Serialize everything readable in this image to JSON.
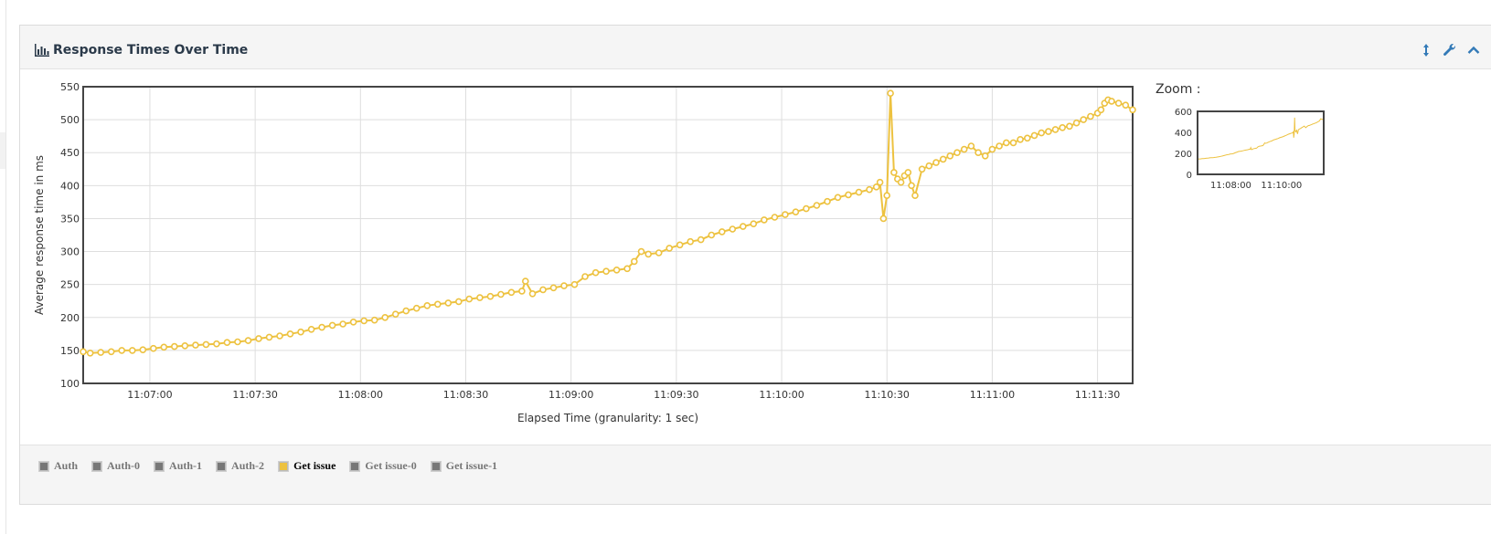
{
  "panel": {
    "title": "Response Times Over Time",
    "title_icon": "bar-chart-icon",
    "tools": [
      "resize-vertical-icon",
      "wrench-icon",
      "chevron-up-icon"
    ]
  },
  "zoom": {
    "label": "Zoom :"
  },
  "colors": {
    "series": "#edc240",
    "inactive": "#777777"
  },
  "chart_data": [
    {
      "type": "line",
      "title": "",
      "xlabel": "Elapsed Time (granularity: 1 sec)",
      "ylabel": "Average response time in ms",
      "ylim": [
        100,
        550
      ],
      "yticks": [
        100,
        150,
        200,
        250,
        300,
        350,
        400,
        450,
        500,
        550
      ],
      "xlim": [
        "11:06:41",
        "11:11:40"
      ],
      "xticks": [
        "11:07:00",
        "11:07:30",
        "11:08:00",
        "11:08:30",
        "11:09:00",
        "11:09:30",
        "11:10:00",
        "11:10:30",
        "11:11:00",
        "11:11:30"
      ],
      "grid": true,
      "markers": true,
      "series": [
        {
          "name": "Get issue",
          "x": [
            "11:06:41",
            "11:06:43",
            "11:06:46",
            "11:06:49",
            "11:06:52",
            "11:06:55",
            "11:06:58",
            "11:07:01",
            "11:07:04",
            "11:07:07",
            "11:07:10",
            "11:07:13",
            "11:07:16",
            "11:07:19",
            "11:07:22",
            "11:07:25",
            "11:07:28",
            "11:07:31",
            "11:07:34",
            "11:07:37",
            "11:07:40",
            "11:07:43",
            "11:07:46",
            "11:07:49",
            "11:07:52",
            "11:07:55",
            "11:07:58",
            "11:08:01",
            "11:08:04",
            "11:08:07",
            "11:08:10",
            "11:08:13",
            "11:08:16",
            "11:08:19",
            "11:08:22",
            "11:08:25",
            "11:08:28",
            "11:08:31",
            "11:08:34",
            "11:08:37",
            "11:08:40",
            "11:08:43",
            "11:08:46",
            "11:08:47",
            "11:08:49",
            "11:08:52",
            "11:08:55",
            "11:08:58",
            "11:09:01",
            "11:09:04",
            "11:09:07",
            "11:09:10",
            "11:09:13",
            "11:09:16",
            "11:09:18",
            "11:09:20",
            "11:09:22",
            "11:09:25",
            "11:09:28",
            "11:09:31",
            "11:09:34",
            "11:09:37",
            "11:09:40",
            "11:09:43",
            "11:09:46",
            "11:09:49",
            "11:09:52",
            "11:09:55",
            "11:09:58",
            "11:10:01",
            "11:10:04",
            "11:10:07",
            "11:10:10",
            "11:10:13",
            "11:10:16",
            "11:10:19",
            "11:10:22",
            "11:10:25",
            "11:10:27",
            "11:10:28",
            "11:10:29",
            "11:10:30",
            "11:10:31",
            "11:10:32",
            "11:10:33",
            "11:10:34",
            "11:10:35",
            "11:10:36",
            "11:10:37",
            "11:10:38",
            "11:10:40",
            "11:10:42",
            "11:10:44",
            "11:10:46",
            "11:10:48",
            "11:10:50",
            "11:10:52",
            "11:10:54",
            "11:10:56",
            "11:10:58",
            "11:11:00",
            "11:11:02",
            "11:11:04",
            "11:11:06",
            "11:11:08",
            "11:11:10",
            "11:11:12",
            "11:11:14",
            "11:11:16",
            "11:11:18",
            "11:11:20",
            "11:11:22",
            "11:11:24",
            "11:11:26",
            "11:11:28",
            "11:11:30",
            "11:11:31",
            "11:11:32",
            "11:11:33",
            "11:11:34",
            "11:11:36",
            "11:11:38",
            "11:11:40"
          ],
          "y": [
            148,
            146,
            147,
            148,
            150,
            150,
            151,
            153,
            155,
            156,
            157,
            158,
            159,
            160,
            162,
            163,
            165,
            168,
            170,
            172,
            175,
            178,
            182,
            185,
            188,
            190,
            193,
            195,
            196,
            200,
            205,
            210,
            214,
            218,
            220,
            222,
            224,
            228,
            230,
            232,
            235,
            238,
            240,
            255,
            236,
            242,
            245,
            248,
            250,
            262,
            268,
            270,
            272,
            274,
            285,
            300,
            296,
            298,
            305,
            310,
            315,
            318,
            325,
            330,
            334,
            338,
            342,
            348,
            352,
            356,
            360,
            365,
            370,
            376,
            382,
            386,
            390,
            394,
            398,
            405,
            350,
            385,
            540,
            420,
            410,
            405,
            415,
            420,
            400,
            385,
            425,
            430,
            435,
            440,
            445,
            450,
            455,
            460,
            450,
            445,
            455,
            460,
            465,
            465,
            470,
            472,
            476,
            480,
            482,
            485,
            488,
            490,
            495,
            500,
            505,
            510,
            515,
            525,
            530,
            528,
            525,
            522,
            515
          ]
        }
      ]
    },
    {
      "type": "line",
      "title": "Zoom :",
      "ylim": [
        0,
        600
      ],
      "yticks": [
        0,
        200,
        400,
        600
      ],
      "xticks": [
        "11:08:00",
        "11:10:00"
      ],
      "grid": false,
      "markers": false
    }
  ],
  "legend": {
    "items": [
      {
        "label": "Auth",
        "active": false
      },
      {
        "label": "Auth-0",
        "active": false
      },
      {
        "label": "Auth-1",
        "active": false
      },
      {
        "label": "Auth-2",
        "active": false
      },
      {
        "label": "Get issue",
        "active": true
      },
      {
        "label": "Get issue-0",
        "active": false
      },
      {
        "label": "Get issue-1",
        "active": false
      }
    ]
  }
}
